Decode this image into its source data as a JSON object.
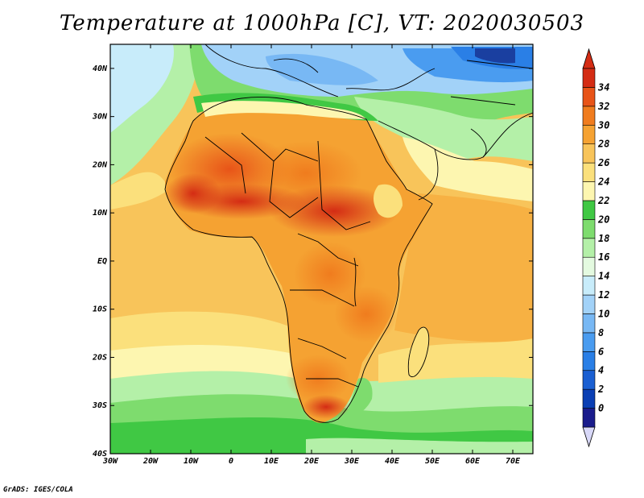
{
  "title": "Temperature at 1000hPa [C], VT: 2020030503",
  "credit": "GrADS: IGES/COLA",
  "map": {
    "lon_range": [
      -30,
      75
    ],
    "lat_range": [
      -40,
      45
    ],
    "lon_ticks": [
      {
        "value": -30,
        "label": "30W"
      },
      {
        "value": -20,
        "label": "20W"
      },
      {
        "value": -10,
        "label": "10W"
      },
      {
        "value": 0,
        "label": "0"
      },
      {
        "value": 10,
        "label": "10E"
      },
      {
        "value": 20,
        "label": "20E"
      },
      {
        "value": 30,
        "label": "30E"
      },
      {
        "value": 40,
        "label": "40E"
      },
      {
        "value": 50,
        "label": "50E"
      },
      {
        "value": 60,
        "label": "60E"
      },
      {
        "value": 70,
        "label": "70E"
      }
    ],
    "lat_ticks": [
      {
        "value": 40,
        "label": "40N"
      },
      {
        "value": 30,
        "label": "30N"
      },
      {
        "value": 20,
        "label": "20N"
      },
      {
        "value": 10,
        "label": "10N"
      },
      {
        "value": 0,
        "label": "EQ"
      },
      {
        "value": -10,
        "label": "10S"
      },
      {
        "value": -20,
        "label": "20S"
      },
      {
        "value": -30,
        "label": "30S"
      },
      {
        "value": -40,
        "label": "40S"
      }
    ]
  },
  "colorbar": {
    "levels": [
      "0",
      "2",
      "4",
      "6",
      "8",
      "10",
      "12",
      "14",
      "16",
      "18",
      "20",
      "22",
      "24",
      "26",
      "28",
      "30",
      "32",
      "34"
    ],
    "colors": [
      "#1a1c8c",
      "#0a3fb4",
      "#1a5fd2",
      "#2a7fe6",
      "#4a9cf0",
      "#78b8f4",
      "#a2d2f8",
      "#c8ecfa",
      "#e4fae0",
      "#b4f0a8",
      "#7edc6e",
      "#40c844",
      "#fdf6b0",
      "#fbe07c",
      "#f8c45a",
      "#f5a232",
      "#f07c1e",
      "#e85418",
      "#d42c14"
    ],
    "under_color": "#d8d8f8",
    "over_color": "#d42c14"
  }
}
